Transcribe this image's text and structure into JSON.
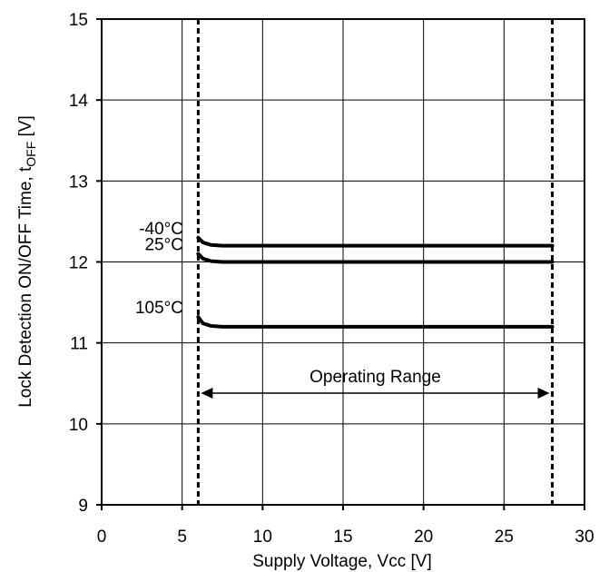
{
  "chart_data": {
    "type": "line",
    "title": "",
    "xlabel": "Supply Voltage, Vcc [V]",
    "ylabel_main": "Lock Detection ON/OFF Time, t",
    "ylabel_subscript": "OFF",
    "ylabel_unit": " [V]",
    "xlim": [
      0,
      30
    ],
    "ylim": [
      9,
      15
    ],
    "x_ticks": [
      0,
      5,
      10,
      15,
      20,
      25,
      30
    ],
    "y_ticks": [
      9,
      10,
      11,
      12,
      13,
      14,
      15
    ],
    "grid": true,
    "series": [
      {
        "name": "-40°C",
        "x": [
          6.0,
          6.3,
          6.8,
          7.5,
          10,
          15,
          20,
          25,
          28.0
        ],
        "y": [
          12.3,
          12.24,
          12.21,
          12.2,
          12.2,
          12.2,
          12.2,
          12.2,
          12.2
        ]
      },
      {
        "name": "25°C",
        "x": [
          6.0,
          6.3,
          6.8,
          7.5,
          10,
          15,
          20,
          25,
          28.0
        ],
        "y": [
          12.1,
          12.04,
          12.01,
          12.0,
          12.0,
          12.0,
          12.0,
          12.0,
          12.0
        ]
      },
      {
        "name": "105°C",
        "x": [
          6.0,
          6.3,
          6.8,
          7.5,
          10,
          15,
          20,
          25,
          28.0
        ],
        "y": [
          11.32,
          11.24,
          11.21,
          11.2,
          11.2,
          11.2,
          11.2,
          11.2,
          11.2
        ]
      }
    ],
    "operating_range": {
      "label": "Operating Range",
      "x_min": 6.0,
      "x_max": 28.0,
      "arrow_y": 10.38
    }
  }
}
